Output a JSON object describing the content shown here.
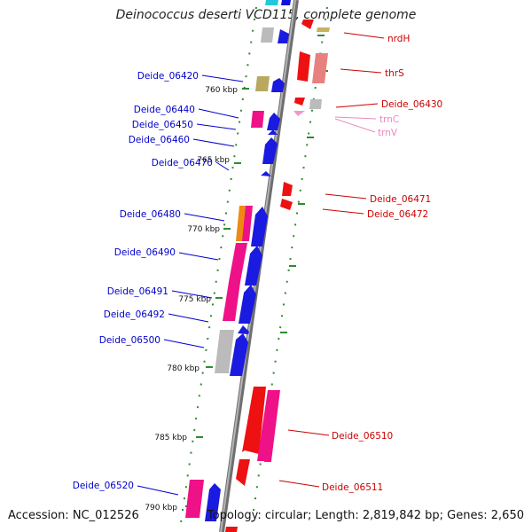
{
  "title": "Deinococcus deserti VCD115, complete genome",
  "accession": "Accession: NC_012526",
  "topology": "Topology: circular; Length: 2,819,842 bp; Genes: 2,650",
  "colors": {
    "backbone": "#8a8a8a",
    "tick": "#2e8b2e",
    "left_label": "#0000cc",
    "right_label": "#cc0000",
    "rna_label": "#ee88bb"
  },
  "kbp_labels": [
    "760 kbp",
    "765 kbp",
    "770 kbp",
    "775 kbp",
    "780 kbp",
    "785 kbp",
    "790 kbp"
  ],
  "left_labels": [
    "Deide_06420",
    "Deide_06440",
    "Deide_06450",
    "Deide_06460",
    "Deide_06470",
    "Deide_06480",
    "Deide_06490",
    "Deide_06491",
    "Deide_06492",
    "Deide_06500",
    "Deide_06520"
  ],
  "right_labels": [
    "nrdH",
    "thrS",
    "Deide_06430",
    "trnC",
    "trnV",
    "Deide_06471",
    "Deide_06472",
    "Deide_06510",
    "Deide_06511"
  ]
}
